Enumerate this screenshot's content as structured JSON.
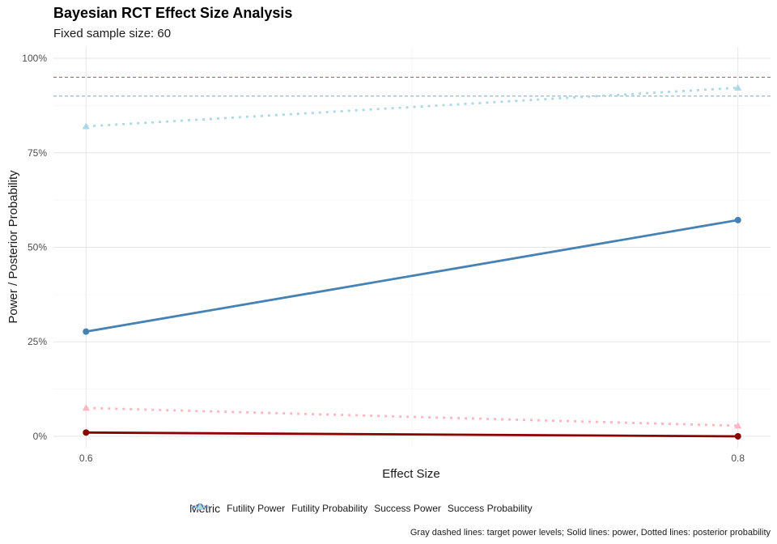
{
  "chart_data": {
    "type": "line",
    "title": "Bayesian RCT Effect Size Analysis",
    "subtitle": "Fixed sample size: 60",
    "xlabel": "Effect Size",
    "ylabel": "Power / Posterior Probability",
    "x": [
      0.6,
      0.8
    ],
    "x_tick_labels": [
      "0.6",
      "0.8"
    ],
    "xlim": [
      0.59,
      0.81
    ],
    "ylim": [
      -0.03,
      1.03
    ],
    "y_ticks": [
      0,
      0.25,
      0.5,
      0.75,
      1.0
    ],
    "y_tick_labels": [
      "0%",
      "25%",
      "50%",
      "75%",
      "100%"
    ],
    "grid": true,
    "series": [
      {
        "name": "Futility Power",
        "values": [
          0.01,
          0.0
        ],
        "color": "#8b0000",
        "line": "solid",
        "marker": "circle"
      },
      {
        "name": "Futility Probability",
        "values": [
          0.075,
          0.028
        ],
        "color": "#ffb6c1",
        "line": "dotted",
        "marker": "triangle"
      },
      {
        "name": "Success Power",
        "values": [
          0.277,
          0.572
        ],
        "color": "#4682b4",
        "line": "solid",
        "marker": "circle"
      },
      {
        "name": "Success Probability",
        "values": [
          0.82,
          0.922
        ],
        "color": "#add8e6",
        "line": "dotted",
        "marker": "triangle"
      }
    ],
    "reference_lines": [
      {
        "y": 0.95,
        "color": "#a05555"
      },
      {
        "y": 0.9,
        "color": "#7aa9c8"
      }
    ],
    "legend": {
      "title": "Metric",
      "position": "bottom"
    },
    "caption": "Gray dashed lines: target power levels; Solid lines: power, Dotted lines: posterior probability"
  }
}
